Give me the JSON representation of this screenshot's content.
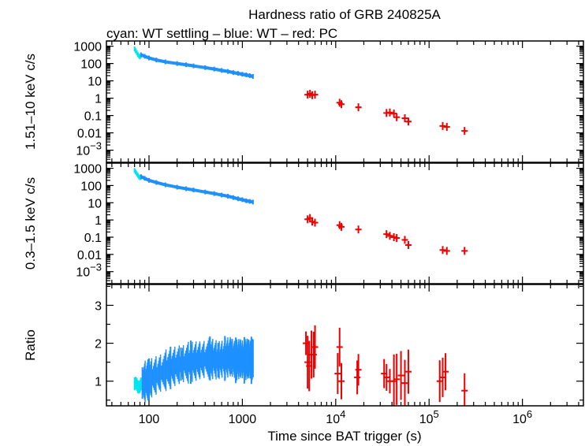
{
  "chart_data": {
    "type": "scatter",
    "title": "Hardness ratio of GRB 240825A",
    "subtitle": "cyan: WT settling – blue: WT – red: PC",
    "xlabel": "Time since BAT trigger (s)",
    "xscale": "log",
    "xlim": [
      35,
      4500000
    ],
    "x_ticks": [
      {
        "value": 100,
        "label": "100"
      },
      {
        "value": 1000,
        "label": "1000"
      },
      {
        "value": 10000,
        "label": "10",
        "exp": "4"
      },
      {
        "value": 100000,
        "label": "10",
        "exp": "5"
      },
      {
        "value": 1000000,
        "label": "10",
        "exp": "6"
      }
    ],
    "series_colors": {
      "wt_settling": "#00e5ee",
      "wt": "#1e90ff",
      "pc": "#ee0000"
    },
    "panels": [
      {
        "id": "hard",
        "ylabel": "1.51–10 keV c/s",
        "yscale": "log",
        "ylim": [
          0.0002,
          2000
        ],
        "y_ticks": [
          {
            "value": 1000,
            "label": "1000"
          },
          {
            "value": 100,
            "label": "100"
          },
          {
            "value": 10,
            "label": "10"
          },
          {
            "value": 1,
            "label": "1"
          },
          {
            "value": 0.1,
            "label": "0.1"
          },
          {
            "value": 0.01,
            "label": "0.01"
          },
          {
            "value": 0.001,
            "label": "10",
            "exp": "−3"
          }
        ],
        "series": [
          {
            "name": "WT settling",
            "color": "#00e5ee",
            "x": [
              70,
              72,
              74,
              76,
              78,
              80,
              82
            ],
            "y": [
              700,
              550,
              420,
              330,
              270,
              240,
              280
            ]
          },
          {
            "name": "WT",
            "color": "#1e90ff",
            "x": [
              82,
              90,
              100,
              120,
              150,
              200,
              250,
              300,
              400,
              500,
              600,
              700,
              800,
              900,
              1000,
              1100,
              1200,
              1300
            ],
            "y": [
              320,
              260,
              210,
              160,
              125,
              100,
              85,
              73,
              58,
              48,
              40,
              35,
              30,
              27,
              24,
              22,
              20,
              18
            ]
          },
          {
            "name": "PC",
            "color": "#ee0000",
            "x": [
              5000,
              5300,
              5600,
              6000,
              11000,
              11500,
              17500,
              35000,
              38000,
              42000,
              45000,
              55000,
              60000,
              140000,
              155000,
              240000
            ],
            "y": [
              1.6,
              1.8,
              1.5,
              1.6,
              0.55,
              0.45,
              0.3,
              0.14,
              0.15,
              0.13,
              0.08,
              0.07,
              0.045,
              0.025,
              0.022,
              0.013
            ],
            "err": true
          }
        ]
      },
      {
        "id": "soft",
        "ylabel": "0.3–1.5 keV c/s",
        "yscale": "log",
        "ylim": [
          0.0002,
          2000
        ],
        "y_ticks": [
          {
            "value": 1000,
            "label": "1000"
          },
          {
            "value": 100,
            "label": "100"
          },
          {
            "value": 10,
            "label": "10"
          },
          {
            "value": 1,
            "label": "1"
          },
          {
            "value": 0.1,
            "label": "0.1"
          },
          {
            "value": 0.01,
            "label": "0.01"
          },
          {
            "value": 0.001,
            "label": "10",
            "exp": "−3"
          }
        ],
        "series": [
          {
            "name": "WT settling",
            "color": "#00e5ee",
            "x": [
              70,
              72,
              74,
              76,
              78,
              80,
              82
            ],
            "y": [
              750,
              600,
              480,
              390,
              320,
              280,
              300
            ]
          },
          {
            "name": "WT",
            "color": "#1e90ff",
            "x": [
              82,
              90,
              100,
              120,
              150,
              200,
              250,
              300,
              400,
              500,
              600,
              700,
              800,
              900,
              1000,
              1100,
              1200,
              1300
            ],
            "y": [
              330,
              260,
              200,
              150,
              110,
              80,
              65,
              55,
              42,
              34,
              28,
              24,
              20,
              17,
              15,
              13,
              12,
              11
            ]
          },
          {
            "name": "PC",
            "color": "#ee0000",
            "x": [
              5000,
              5300,
              5600,
              6000,
              11000,
              11500,
              17500,
              35000,
              38000,
              42000,
              45000,
              55000,
              60000,
              140000,
              155000,
              240000
            ],
            "y": [
              1.1,
              1.3,
              0.8,
              0.7,
              0.5,
              0.4,
              0.28,
              0.15,
              0.12,
              0.1,
              0.09,
              0.07,
              0.035,
              0.018,
              0.016,
              0.016
            ],
            "err": true
          }
        ]
      },
      {
        "id": "ratio",
        "ylabel": "Ratio",
        "yscale": "linear",
        "ylim": [
          0.35,
          3.55
        ],
        "y_ticks": [
          {
            "value": 3,
            "label": "3"
          },
          {
            "value": 2,
            "label": "2"
          },
          {
            "value": 1,
            "label": "1"
          }
        ],
        "series": [
          {
            "name": "WT settling",
            "color": "#00e5ee",
            "x": [
              70,
              72,
              74,
              76,
              78,
              80,
              82
            ],
            "y": [
              0.93,
              0.95,
              0.92,
              0.85,
              0.84,
              0.86,
              0.93
            ]
          },
          {
            "name": "WT",
            "color": "#1e90ff",
            "x": [
              85,
              100,
              130,
              170,
              220,
              280,
              350,
              450,
              550,
              650,
              750,
              850,
              950,
              1050,
              1150,
              1250,
              1300
            ],
            "y": [
              0.95,
              1.05,
              1.2,
              1.35,
              1.45,
              1.5,
              1.55,
              1.6,
              1.55,
              1.6,
              1.65,
              1.55,
              1.6,
              1.55,
              1.6,
              1.55,
              1.6
            ]
          },
          {
            "name": "PC",
            "color": "#ee0000",
            "x": [
              4800,
              5000,
              5200,
              5500,
              5800,
              6000,
              10500,
              11000,
              11500,
              17000,
              17500,
              33000,
              35000,
              38000,
              42000,
              45000,
              50000,
              55000,
              60000,
              130000,
              140000,
              150000,
              240000
            ],
            "y": [
              2.0,
              1.5,
              1.4,
              1.7,
              1.7,
              1.9,
              1.2,
              1.9,
              1.0,
              1.1,
              1.3,
              1.2,
              1.1,
              1.0,
              1.0,
              1.05,
              1.15,
              0.95,
              1.25,
              1.0,
              1.1,
              1.25,
              0.75
            ],
            "err": true
          }
        ]
      }
    ]
  }
}
